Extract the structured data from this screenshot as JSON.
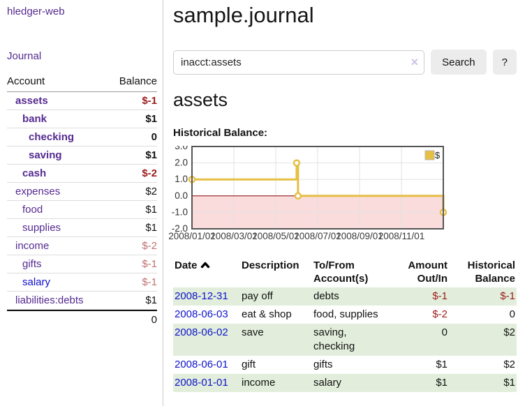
{
  "app": {
    "title": "hledger-web"
  },
  "sidebar": {
    "journal_link": "Journal",
    "accounts": {
      "col_account": "Account",
      "col_balance": "Balance",
      "items": [
        {
          "name": "assets",
          "balance": "$-1"
        },
        {
          "name": "bank",
          "balance": "$1"
        },
        {
          "name": "checking",
          "balance": "0"
        },
        {
          "name": "saving",
          "balance": "$1"
        },
        {
          "name": "cash",
          "balance": "$-2"
        },
        {
          "name": "expenses",
          "balance": "$2"
        },
        {
          "name": "food",
          "balance": "$1"
        },
        {
          "name": "supplies",
          "balance": "$1"
        },
        {
          "name": "income",
          "balance": "$-2"
        },
        {
          "name": "gifts",
          "balance": "$-1"
        },
        {
          "name": "salary",
          "balance": "$-1"
        },
        {
          "name": "liabilities:debts",
          "balance": "$1"
        }
      ],
      "total": "0"
    }
  },
  "main": {
    "title": "sample.journal",
    "search": {
      "value": "inacct:assets",
      "clear_icon": "×",
      "button_label": "Search",
      "help_label": "?"
    },
    "account_heading": "assets",
    "chart_heading": "Historical Balance:"
  },
  "chart_data": {
    "type": "line",
    "step": true,
    "title": "Historical Balance:",
    "series": [
      {
        "name": "$",
        "color": "#e6bf45",
        "points": [
          [
            "2008-01-01",
            1
          ],
          [
            "2008-06-01",
            2
          ],
          [
            "2008-06-03",
            0
          ],
          [
            "2008-12-31",
            -1
          ]
        ]
      }
    ],
    "x_range": [
      "2008-01-01",
      "2008-12-31"
    ],
    "ylim": [
      -2,
      3
    ],
    "y_ticks": [
      "3.0",
      "2.0",
      "1.0",
      "0.0",
      "-1.0",
      "-2.0"
    ],
    "x_ticks": [
      "2008/01/01",
      "2008/03/01",
      "2008/05/01",
      "2008/07/01",
      "2008/09/01",
      "2008/11/01"
    ],
    "legend": "$",
    "legend_position": "top-right",
    "grid": true,
    "negative_fill": "#fadcdc",
    "zero_line_color": "#8b0000",
    "border_color": "#555555",
    "grid_color": "#e2e2e2"
  },
  "register": {
    "columns": [
      "Date",
      "Description",
      "To/From Account(s)",
      "Amount Out/In",
      "Historical Balance"
    ],
    "rows": [
      {
        "date": "2008-12-31",
        "description": "pay off",
        "accounts": "debts",
        "amount": "$-1",
        "balance": "$-1"
      },
      {
        "date": "2008-06-03",
        "description": "eat & shop",
        "accounts": "food, supplies",
        "amount": "$-2",
        "balance": "0"
      },
      {
        "date": "2008-06-02",
        "description": "save",
        "accounts": "saving, checking",
        "amount": "0",
        "balance": "$2"
      },
      {
        "date": "2008-06-01",
        "description": "gift",
        "accounts": "gifts",
        "amount": "$1",
        "balance": "$2"
      },
      {
        "date": "2008-01-01",
        "description": "income",
        "accounts": "salary",
        "amount": "$1",
        "balance": "$1"
      }
    ]
  },
  "colors": {
    "link_purple": "#552a90",
    "link_blue": "#1111cc",
    "negative_strong": "#9d1a1a",
    "negative_soft": "#c17070",
    "row_green": "#e2eedb",
    "series_yellow": "#e6bf45"
  }
}
